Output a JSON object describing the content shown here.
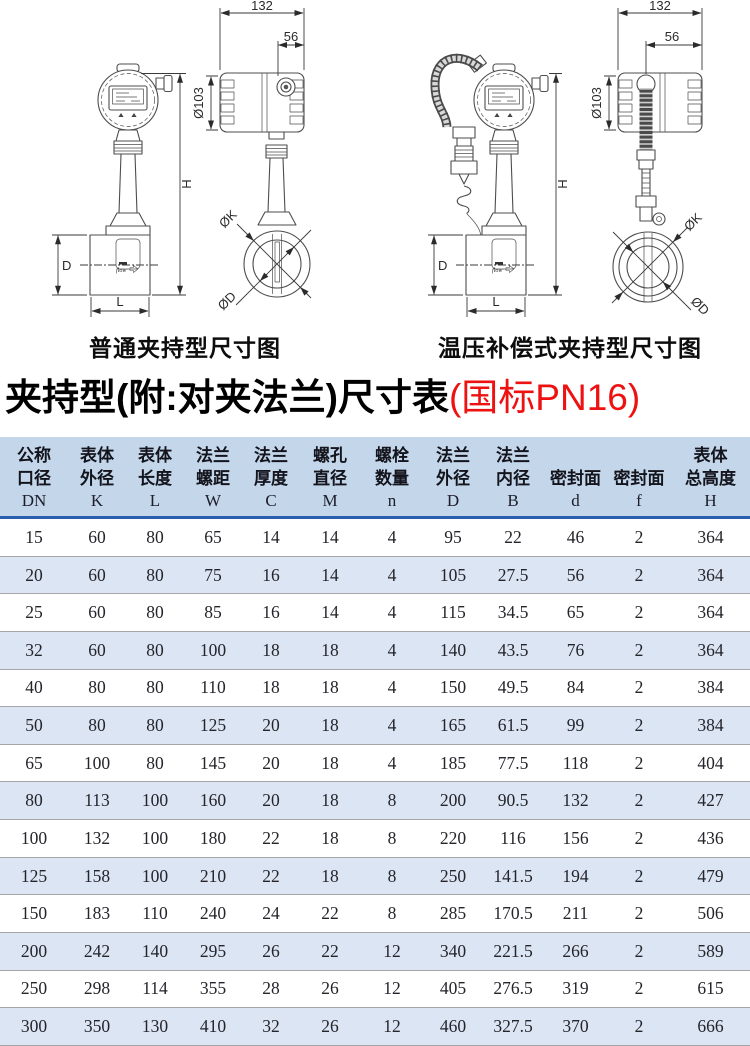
{
  "figures": {
    "left": {
      "caption": "普通夹持型尺寸图",
      "flow_label": "flow",
      "dims": {
        "head_width": "132",
        "head_offset": "56",
        "head_dia": "Ø103",
        "total_height": "H",
        "body_height": "D",
        "body_length": "L",
        "clamp_outer": "ØK",
        "bore": "ØD"
      }
    },
    "right": {
      "caption": "温压补偿式夹持型尺寸图",
      "flow_label": "flow",
      "dims": {
        "head_width": "132",
        "head_offset": "56",
        "head_dia": "Ø103",
        "total_height": "H",
        "body_height": "D",
        "body_length": "L",
        "clamp_outer": "ØK",
        "bore": "ØD"
      }
    }
  },
  "title": {
    "main": "夹持型(附:对夹法兰)尺寸表",
    "highlight": "(国标PN16)"
  },
  "table": {
    "headers": [
      {
        "lines": [
          "公称",
          "口径"
        ],
        "sym": "DN"
      },
      {
        "lines": [
          "表体",
          "外径"
        ],
        "sym": "K"
      },
      {
        "lines": [
          "表体",
          "长度"
        ],
        "sym": "L"
      },
      {
        "lines": [
          "法兰",
          "螺距"
        ],
        "sym": "W"
      },
      {
        "lines": [
          "法兰",
          "厚度"
        ],
        "sym": "C"
      },
      {
        "lines": [
          "螺孔",
          "直径"
        ],
        "sym": "M"
      },
      {
        "lines": [
          "螺栓",
          "数量"
        ],
        "sym": "n"
      },
      {
        "lines": [
          "法兰",
          "外径"
        ],
        "sym": "D"
      },
      {
        "lines": [
          "法兰",
          "内径"
        ],
        "sym": "B"
      },
      {
        "lines": [
          "",
          "密封面"
        ],
        "sym": "d"
      },
      {
        "lines": [
          "",
          "密封面"
        ],
        "sym": "f"
      },
      {
        "lines": [
          "表体",
          "总高度"
        ],
        "sym": "H"
      }
    ],
    "rows": [
      [
        "15",
        "60",
        "80",
        "65",
        "14",
        "14",
        "4",
        "95",
        "22",
        "46",
        "2",
        "364"
      ],
      [
        "20",
        "60",
        "80",
        "75",
        "16",
        "14",
        "4",
        "105",
        "27.5",
        "56",
        "2",
        "364"
      ],
      [
        "25",
        "60",
        "80",
        "85",
        "16",
        "14",
        "4",
        "115",
        "34.5",
        "65",
        "2",
        "364"
      ],
      [
        "32",
        "60",
        "80",
        "100",
        "18",
        "18",
        "4",
        "140",
        "43.5",
        "76",
        "2",
        "364"
      ],
      [
        "40",
        "80",
        "80",
        "110",
        "18",
        "18",
        "4",
        "150",
        "49.5",
        "84",
        "2",
        "384"
      ],
      [
        "50",
        "80",
        "80",
        "125",
        "20",
        "18",
        "4",
        "165",
        "61.5",
        "99",
        "2",
        "384"
      ],
      [
        "65",
        "100",
        "80",
        "145",
        "20",
        "18",
        "4",
        "185",
        "77.5",
        "118",
        "2",
        "404"
      ],
      [
        "80",
        "113",
        "100",
        "160",
        "20",
        "18",
        "8",
        "200",
        "90.5",
        "132",
        "2",
        "427"
      ],
      [
        "100",
        "132",
        "100",
        "180",
        "22",
        "18",
        "8",
        "220",
        "116",
        "156",
        "2",
        "436"
      ],
      [
        "125",
        "158",
        "100",
        "210",
        "22",
        "18",
        "8",
        "250",
        "141.5",
        "194",
        "2",
        "479"
      ],
      [
        "150",
        "183",
        "110",
        "240",
        "24",
        "22",
        "8",
        "285",
        "170.5",
        "211",
        "2",
        "506"
      ],
      [
        "200",
        "242",
        "140",
        "295",
        "26",
        "22",
        "12",
        "340",
        "221.5",
        "266",
        "2",
        "589"
      ],
      [
        "250",
        "298",
        "114",
        "355",
        "28",
        "26",
        "12",
        "405",
        "276.5",
        "319",
        "2",
        "615"
      ],
      [
        "300",
        "350",
        "130",
        "410",
        "32",
        "26",
        "12",
        "460",
        "327.5",
        "370",
        "2",
        "666"
      ]
    ]
  },
  "colors": {
    "highlight_red": "#ee1111",
    "header_bg": "#c3d6ea",
    "row_alt_bg": "#dce5f3",
    "header_rule": "#2b5fae",
    "row_border": "#a6a6a6",
    "line_art": "#4d4d4d"
  }
}
